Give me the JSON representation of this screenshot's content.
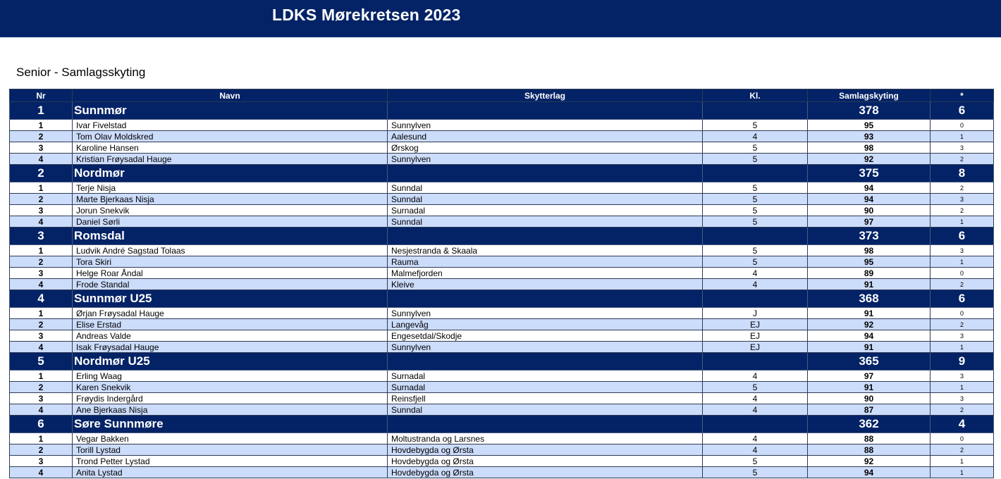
{
  "header": {
    "title": "LDKS Mørekretsen 2023"
  },
  "subtitle": "Senior - Samlagsskyting",
  "columns": {
    "nr": "Nr",
    "navn": "Navn",
    "lag": "Skytterlag",
    "kl": "Kl.",
    "score": "Samlagskyting",
    "star": "*"
  },
  "teams": [
    {
      "nr": "1",
      "name": "Sunnmør",
      "score": "378",
      "star": "6",
      "members": [
        {
          "nr": "1",
          "name": "Ivar Fivelstad",
          "club": "Sunnylven",
          "kl": "5",
          "score": "95",
          "star": "0"
        },
        {
          "nr": "2",
          "name": "Tom Olav Moldskred",
          "club": "Aalesund",
          "kl": "4",
          "score": "93",
          "star": "1"
        },
        {
          "nr": "3",
          "name": "Karoline Hansen",
          "club": "Ørskog",
          "kl": "5",
          "score": "98",
          "star": "3"
        },
        {
          "nr": "4",
          "name": "Kristian Frøysadal Hauge",
          "club": "Sunnylven",
          "kl": "5",
          "score": "92",
          "star": "2"
        }
      ]
    },
    {
      "nr": "2",
      "name": "Nordmør",
      "score": "375",
      "star": "8",
      "members": [
        {
          "nr": "1",
          "name": "Terje Nisja",
          "club": "Sunndal",
          "kl": "5",
          "score": "94",
          "star": "2"
        },
        {
          "nr": "2",
          "name": "Marte Bjerkaas Nisja",
          "club": "Sunndal",
          "kl": "5",
          "score": "94",
          "star": "3"
        },
        {
          "nr": "3",
          "name": "Jorun Snekvik",
          "club": "Surnadal",
          "kl": "5",
          "score": "90",
          "star": "2"
        },
        {
          "nr": "4",
          "name": "Daniel Sørli",
          "club": "Sunndal",
          "kl": "5",
          "score": "97",
          "star": "1"
        }
      ]
    },
    {
      "nr": "3",
      "name": "Romsdal",
      "score": "373",
      "star": "6",
      "members": [
        {
          "nr": "1",
          "name": "Ludvik André Sagstad Tolaas",
          "club": "Nesjestranda & Skaala",
          "kl": "5",
          "score": "98",
          "star": "3"
        },
        {
          "nr": "2",
          "name": "Tora Skiri",
          "club": "Rauma",
          "kl": "5",
          "score": "95",
          "star": "1"
        },
        {
          "nr": "3",
          "name": "Helge Roar Åndal",
          "club": "Malmefjorden",
          "kl": "4",
          "score": "89",
          "star": "0"
        },
        {
          "nr": "4",
          "name": "Frode Standal",
          "club": "Kleive",
          "kl": "4",
          "score": "91",
          "star": "2"
        }
      ]
    },
    {
      "nr": "4",
      "name": "Sunnmør U25",
      "score": "368",
      "star": "6",
      "members": [
        {
          "nr": "1",
          "name": "Ørjan Frøysadal Hauge",
          "club": "Sunnylven",
          "kl": "J",
          "score": "91",
          "star": "0"
        },
        {
          "nr": "2",
          "name": "Elise Erstad",
          "club": "Langevåg",
          "kl": "EJ",
          "score": "92",
          "star": "2"
        },
        {
          "nr": "3",
          "name": "Andreas Valde",
          "club": "Engesetdal/Skodje",
          "kl": "EJ",
          "score": "94",
          "star": "3"
        },
        {
          "nr": "4",
          "name": "Isak Frøysadal Hauge",
          "club": "Sunnylven",
          "kl": "EJ",
          "score": "91",
          "star": "1"
        }
      ]
    },
    {
      "nr": "5",
      "name": "Nordmør U25",
      "score": "365",
      "star": "9",
      "members": [
        {
          "nr": "1",
          "name": "Erling Waag",
          "club": "Surnadal",
          "kl": "4",
          "score": "97",
          "star": "3"
        },
        {
          "nr": "2",
          "name": "Karen Snekvik",
          "club": "Surnadal",
          "kl": "5",
          "score": "91",
          "star": "1"
        },
        {
          "nr": "3",
          "name": "Frøydis Indergård",
          "club": "Reinsfjell",
          "kl": "4",
          "score": "90",
          "star": "3"
        },
        {
          "nr": "4",
          "name": "Ane Bjerkaas Nisja",
          "club": "Sunndal",
          "kl": "4",
          "score": "87",
          "star": "2"
        }
      ]
    },
    {
      "nr": "6",
      "name": "Søre Sunnmøre",
      "score": "362",
      "star": "4",
      "members": [
        {
          "nr": "1",
          "name": "Vegar Bakken",
          "club": "Moltustranda og Larsnes",
          "kl": "4",
          "score": "88",
          "star": "0"
        },
        {
          "nr": "2",
          "name": "Torill Lystad",
          "club": "Hovdebygda og Ørsta",
          "kl": "4",
          "score": "88",
          "star": "2"
        },
        {
          "nr": "3",
          "name": "Trond Petter Lystad",
          "club": "Hovdebygda og Ørsta",
          "kl": "5",
          "score": "92",
          "star": "1"
        },
        {
          "nr": "4",
          "name": "Anita Lystad",
          "club": "Hovdebygda og Ørsta",
          "kl": "5",
          "score": "94",
          "star": "1"
        }
      ]
    }
  ]
}
